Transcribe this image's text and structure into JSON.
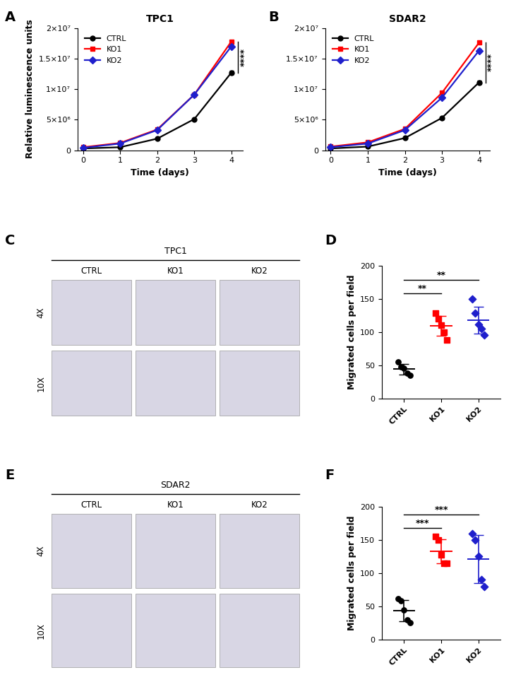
{
  "chart_data": [
    {
      "panel": "A",
      "type": "line",
      "title": "TPC1",
      "x_label": "Time (days)",
      "y_label": "Relative luminescence units",
      "x": [
        0,
        1,
        2,
        3,
        4
      ],
      "xlim": [
        -0.15,
        4.3
      ],
      "xticks": [
        0,
        1,
        2,
        3,
        4
      ],
      "ylim": [
        0,
        20000000
      ],
      "yticks": [
        0,
        {
          "value": 5000000,
          "label": "5×10⁶"
        },
        {
          "value": 10000000,
          "label": "1×10⁷"
        },
        {
          "value": 15000000,
          "label": "1.5×10⁷"
        },
        {
          "value": 20000000,
          "label": "2×10⁷"
        }
      ],
      "legend": "upper left",
      "series": [
        {
          "name": "CTRL",
          "color": "#000000",
          "marker": "circle",
          "values": [
            300000,
            500000,
            1900000,
            5100000,
            12700000
          ],
          "error": [
            50000,
            50000,
            100000,
            100000,
            300000
          ]
        },
        {
          "name": "KO1",
          "color": "#ff0000",
          "marker": "square",
          "values": [
            500000,
            1200000,
            3400000,
            9100000,
            17800000
          ],
          "error": [
            50000,
            50000,
            100000,
            100000,
            200000
          ]
        },
        {
          "name": "KO2",
          "color": "#1f1fcc",
          "marker": "diamond",
          "values": [
            400000,
            1100000,
            3300000,
            9100000,
            17000000
          ],
          "error": [
            50000,
            50000,
            100000,
            100000,
            300000
          ]
        }
      ],
      "significance": [
        {
          "groups": [
            "KO1",
            "CTRL"
          ],
          "label": "****"
        }
      ]
    },
    {
      "panel": "B",
      "type": "line",
      "title": "SDAR2",
      "x_label": "Time (days)",
      "x": [
        0,
        1,
        2,
        3,
        4
      ],
      "xlim": [
        -0.15,
        4.3
      ],
      "xticks": [
        0,
        1,
        2,
        3,
        4
      ],
      "ylim": [
        0,
        20000000
      ],
      "yticks": [
        0,
        {
          "value": 5000000,
          "label": "5×10⁶"
        },
        {
          "value": 10000000,
          "label": "1×10⁷"
        },
        {
          "value": 15000000,
          "label": "1.5×10⁷"
        },
        {
          "value": 20000000,
          "label": "2×10⁷"
        }
      ],
      "legend": "upper left",
      "series": [
        {
          "name": "CTRL",
          "color": "#000000",
          "marker": "circle",
          "values": [
            300000,
            600000,
            2000000,
            5300000,
            11100000
          ],
          "error": [
            50000,
            50000,
            100000,
            100000,
            300000
          ]
        },
        {
          "name": "KO1",
          "color": "#ff0000",
          "marker": "square",
          "values": [
            600000,
            1300000,
            3500000,
            9400000,
            17600000
          ],
          "error": [
            50000,
            50000,
            100000,
            100000,
            200000
          ]
        },
        {
          "name": "KO2",
          "color": "#1f1fcc",
          "marker": "diamond",
          "values": [
            500000,
            1100000,
            3300000,
            8600000,
            16300000
          ],
          "error": [
            50000,
            50000,
            100000,
            100000,
            300000
          ]
        }
      ],
      "significance": [
        {
          "groups": [
            "KO1",
            "CTRL"
          ],
          "label": "****"
        }
      ]
    },
    {
      "panel": "C",
      "type": "image",
      "title": "TPC1",
      "columns": [
        "CTRL",
        "KO1",
        "KO2"
      ],
      "rows": [
        "4X",
        "10X"
      ]
    },
    {
      "panel": "D",
      "type": "scatter",
      "y_label": "Migrated cells per field",
      "categories": [
        "CTRL",
        "KO1",
        "KO2"
      ],
      "ylim": [
        0,
        200
      ],
      "yticks": [
        0,
        50,
        100,
        150,
        200
      ],
      "groups": [
        {
          "color": "#000000",
          "marker": "circle",
          "values": [
            55,
            48,
            45,
            38,
            35
          ],
          "mean": 44,
          "sd": 8
        },
        {
          "color": "#ff0000",
          "marker": "square",
          "values": [
            128,
            120,
            110,
            100,
            88
          ],
          "mean": 109,
          "sd": 15
        },
        {
          "color": "#1f1fcc",
          "marker": "diamond",
          "values": [
            150,
            128,
            112,
            105,
            95
          ],
          "mean": 118,
          "sd": 20
        }
      ],
      "significance": [
        {
          "groups": [
            "CTRL",
            "KO1"
          ],
          "label": "**"
        },
        {
          "groups": [
            "CTRL",
            "KO2"
          ],
          "label": "**"
        }
      ]
    },
    {
      "panel": "E",
      "type": "image",
      "title": "SDAR2",
      "columns": [
        "CTRL",
        "KO1",
        "KO2"
      ],
      "rows": [
        "4X",
        "10X"
      ]
    },
    {
      "panel": "F",
      "type": "scatter",
      "y_label": "Migrated cells per field",
      "categories": [
        "CTRL",
        "KO1",
        "KO2"
      ],
      "ylim": [
        0,
        200
      ],
      "yticks": [
        0,
        50,
        100,
        150,
        200
      ],
      "groups": [
        {
          "color": "#000000",
          "marker": "circle",
          "values": [
            62,
            58,
            45,
            30,
            25
          ],
          "mean": 44,
          "sd": 16
        },
        {
          "color": "#ff0000",
          "marker": "square",
          "values": [
            155,
            150,
            128,
            115,
            115
          ],
          "mean": 133,
          "sd": 18
        },
        {
          "color": "#1f1fcc",
          "marker": "diamond",
          "values": [
            160,
            150,
            125,
            90,
            80
          ],
          "mean": 121,
          "sd": 36
        }
      ],
      "significance": [
        {
          "groups": [
            "CTRL",
            "KO1"
          ],
          "label": "***"
        },
        {
          "groups": [
            "CTRL",
            "KO2"
          ],
          "label": "***"
        }
      ]
    }
  ]
}
